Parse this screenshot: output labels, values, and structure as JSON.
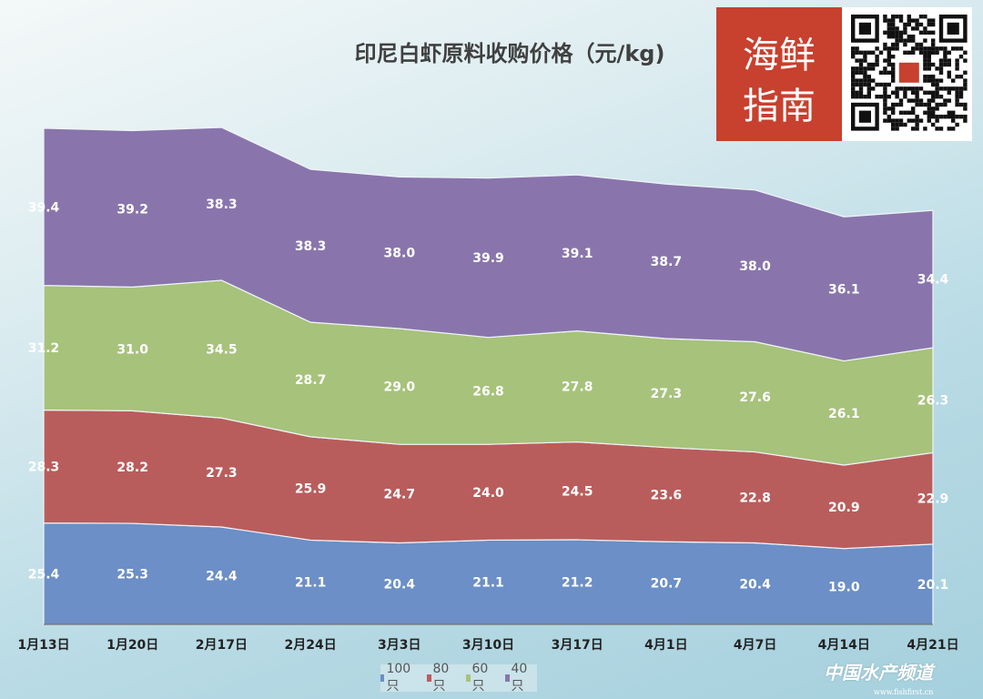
{
  "chart_data": {
    "type": "area",
    "stacked": true,
    "title": "印尼白虾原料收购价格（元/kg)",
    "categories": [
      "1月13日",
      "1月20日",
      "2月17日",
      "2月24日",
      "3月3日",
      "3月10日",
      "3月17日",
      "4月1日",
      "4月7日",
      "4月14日",
      "4月21日"
    ],
    "series": [
      {
        "name": "100只",
        "color": "#6b8fc6",
        "values": [
          25.4,
          25.3,
          24.4,
          21.1,
          20.4,
          21.1,
          21.2,
          20.7,
          20.4,
          19.0,
          20.1
        ]
      },
      {
        "name": "80只",
        "color": "#b95d5c",
        "values": [
          28.3,
          28.2,
          27.3,
          25.9,
          24.7,
          24.0,
          24.5,
          23.6,
          22.8,
          20.9,
          22.9
        ]
      },
      {
        "name": "60只",
        "color": "#a7c27b",
        "values": [
          31.2,
          31.0,
          34.5,
          28.7,
          29.0,
          26.8,
          27.8,
          27.3,
          27.6,
          26.1,
          26.3
        ]
      },
      {
        "name": "40只",
        "color": "#8975ac",
        "values": [
          39.4,
          39.2,
          38.3,
          38.3,
          38.0,
          39.9,
          39.1,
          38.7,
          38.0,
          36.1,
          34.4
        ]
      }
    ],
    "data_labels": true,
    "grid": false,
    "legend": "bottom",
    "ylim": [
      0,
      140
    ]
  },
  "logo": {
    "text": "海鲜指南"
  },
  "watermark": {
    "text": "中国水产频道",
    "url": "www.fishfirst.cn"
  }
}
